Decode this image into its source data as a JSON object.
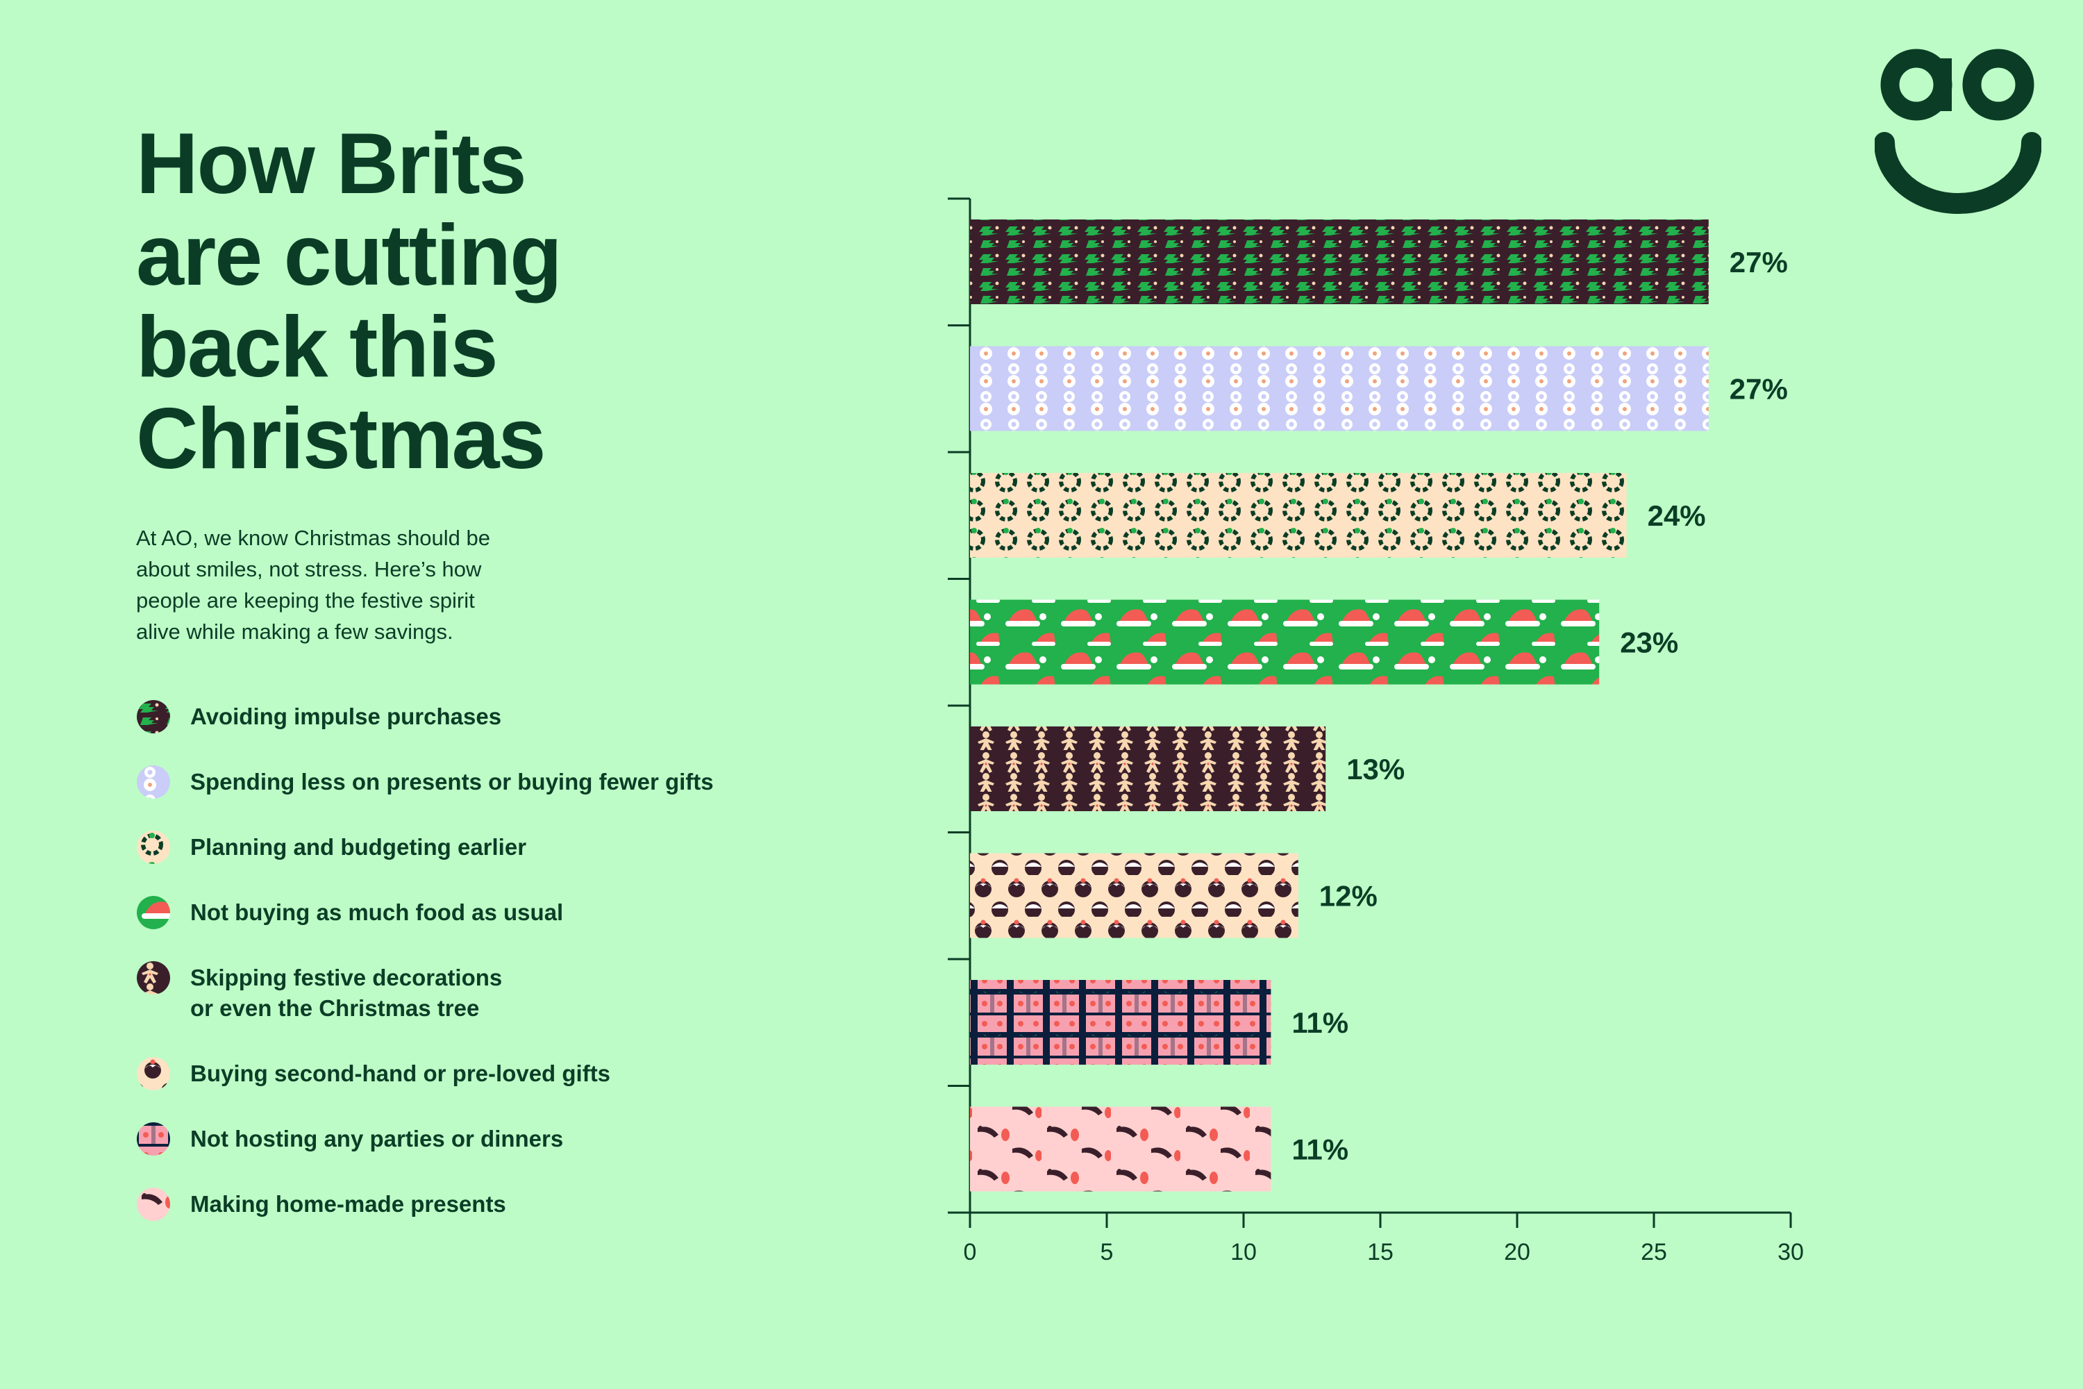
{
  "brand": {
    "logo_text": "ao",
    "dark": "#0b3d26",
    "background": "#bdfcc7"
  },
  "title_lines": [
    "How Brits",
    "are cutting",
    "back this",
    "Christmas"
  ],
  "intro_lines": [
    "At AO, we know Christmas should be",
    "about smiles, not stress. Here’s how",
    "people are keeping the festive spirit",
    "alive while making a few savings."
  ],
  "legend": [
    {
      "label": "Avoiding impulse purchases",
      "icon": "christmas-tree-pattern-icon"
    },
    {
      "label": "Spending less on presents or buying fewer gifts",
      "icon": "snowman-pattern-icon"
    },
    {
      "label": "Planning and budgeting earlier",
      "icon": "wreath-pattern-icon"
    },
    {
      "label": "Not buying as much food as usual",
      "icon": "santa-hat-pattern-icon"
    },
    {
      "label": "Skipping festive decorations\nor even the Christmas tree",
      "icon": "gingerbread-man-pattern-icon"
    },
    {
      "label": "Buying second-hand or pre-loved gifts",
      "icon": "christmas-pudding-pattern-icon"
    },
    {
      "label": "Not hosting any parties or dinners",
      "icon": "gift-box-pattern-icon"
    },
    {
      "label": "Making home-made presents",
      "icon": "robin-pattern-icon"
    }
  ],
  "chart_data": {
    "type": "bar",
    "orientation": "horizontal",
    "title": "How Brits are cutting back this Christmas",
    "xlabel": "",
    "ylabel": "",
    "xlim": [
      0,
      30
    ],
    "xticks": [
      0,
      5,
      10,
      15,
      20,
      25,
      30
    ],
    "grid": false,
    "value_suffix": "%",
    "categories": [
      "Avoiding impulse purchases",
      "Spending less on presents or buying fewer gifts",
      "Planning and budgeting earlier",
      "Not buying as much food as usual",
      "Skipping festive decorations or even the Christmas tree",
      "Buying second-hand or pre-loved gifts",
      "Not hosting any parties or dinners",
      "Making home-made presents"
    ],
    "values": [
      27,
      27,
      24,
      23,
      13,
      12,
      11,
      11
    ],
    "data_labels": [
      "27%",
      "27%",
      "24%",
      "23%",
      "13%",
      "12%",
      "11%",
      "11%"
    ],
    "patterns": [
      {
        "name": "christmas-tree",
        "bg": "#3a1f2b",
        "fg": "#22b14c",
        "accent": "#f6d7b0"
      },
      {
        "name": "snowman",
        "bg": "#c9cdf7",
        "fg": "#ffffff",
        "accent": "#f0a37a"
      },
      {
        "name": "wreath",
        "bg": "#fde3c3",
        "fg": "#0b3d26",
        "accent": "#22b14c"
      },
      {
        "name": "santa-hat",
        "bg": "#22b14c",
        "fg": "#f25c54",
        "accent": "#ffffff"
      },
      {
        "name": "gingerbread-man",
        "bg": "#3a1f2b",
        "fg": "#f6d7b0",
        "accent": "#f25c54"
      },
      {
        "name": "christmas-pudding",
        "bg": "#fde3c3",
        "fg": "#3a1f2b",
        "accent": "#f25c54"
      },
      {
        "name": "gift-box",
        "bg": "#0b1f3d",
        "fg": "#f7a1b0",
        "accent": "#22b14c"
      },
      {
        "name": "robin",
        "bg": "#ffd0cf",
        "fg": "#3a1f2b",
        "accent": "#f25c54"
      }
    ]
  }
}
